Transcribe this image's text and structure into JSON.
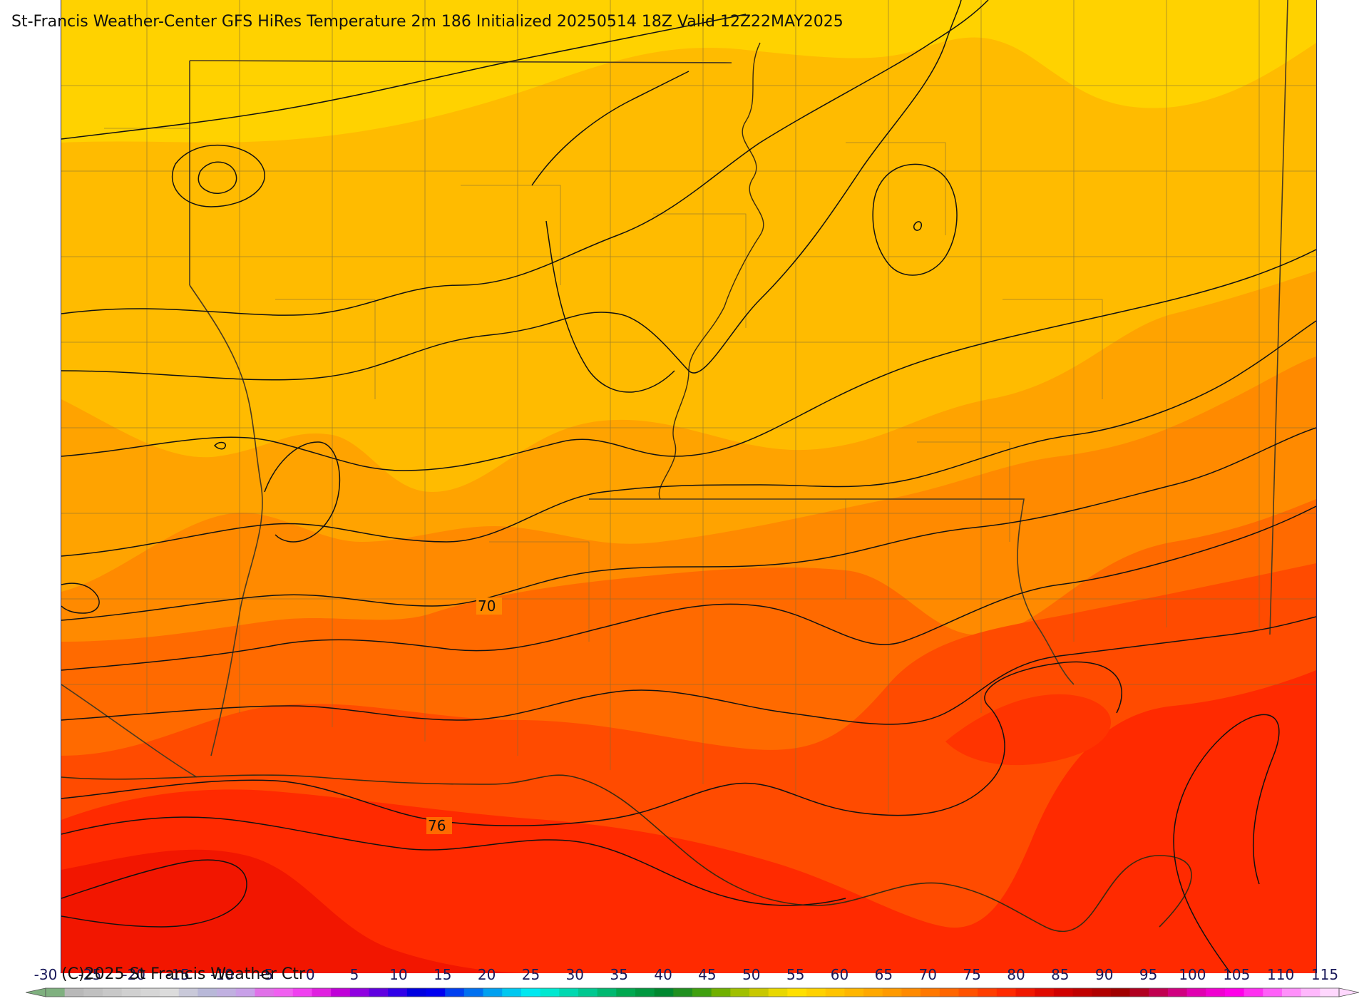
{
  "header": {
    "title": "St-Francis Weather-Center GFS HiRes Temperature 2m  186 Initialized 20250514 18Z Valid 12Z22MAY2025"
  },
  "map": {
    "contour_labels": [
      "70",
      "76"
    ],
    "fill_colors": {
      "yellow": "#ffd200",
      "light_orange": "#ffbb00",
      "orange": "#ffa300",
      "dark_orange": "#ff8a00",
      "red_orange": "#ff6a00",
      "orange_red": "#ff4b00",
      "red": "#ff2a00",
      "deep_red": "#f21600"
    }
  },
  "colorbar": {
    "tick_labels": [
      "-30",
      "-25",
      "-20",
      "-15",
      "-10",
      "-5",
      "0",
      "5",
      "10",
      "15",
      "20",
      "25",
      "30",
      "35",
      "40",
      "45",
      "50",
      "55",
      "60",
      "65",
      "70",
      "75",
      "80",
      "85",
      "90",
      "95",
      "100",
      "105",
      "110",
      "115"
    ],
    "colors": [
      "#7fb07f",
      "#b8b8b8",
      "#c0c0c0",
      "#c8c8c8",
      "#d0d0d0",
      "#d6d6d6",
      "#dcdcdc",
      "#c9c9d9",
      "#b8b8d8",
      "#c0b0e0",
      "#c8a0e8",
      "#e070e8",
      "#f060f0",
      "#f040f0",
      "#e020e0",
      "#c000d8",
      "#9000e0",
      "#6000e0",
      "#3000e8",
      "#0000e0",
      "#0000f0",
      "#0040f0",
      "#0070f0",
      "#00a0f0",
      "#00c8f0",
      "#00e8f0",
      "#00e8d0",
      "#00d8b0",
      "#00c890",
      "#00b870",
      "#00a850",
      "#009840",
      "#008830",
      "#209020",
      "#40a010",
      "#70b000",
      "#a0c000",
      "#c8c800",
      "#e8d800",
      "#ffe000",
      "#ffd200",
      "#ffc400",
      "#ffb600",
      "#ffa800",
      "#ff9a00",
      "#ff8a00",
      "#ff7800",
      "#ff6600",
      "#ff5200",
      "#ff3e00",
      "#ff2a00",
      "#f01800",
      "#e00a00",
      "#d00000",
      "#c00000",
      "#b00000",
      "#a00000",
      "#b00020",
      "#c00050",
      "#d00080",
      "#e000b0",
      "#f000d0",
      "#ff00e8",
      "#ff30f0",
      "#ff60f8",
      "#ff90fa",
      "#ffb8fc",
      "#ffd8fe"
    ]
  },
  "footer": {
    "copyright": "(C)2025 St Francis Weather Ctr"
  }
}
